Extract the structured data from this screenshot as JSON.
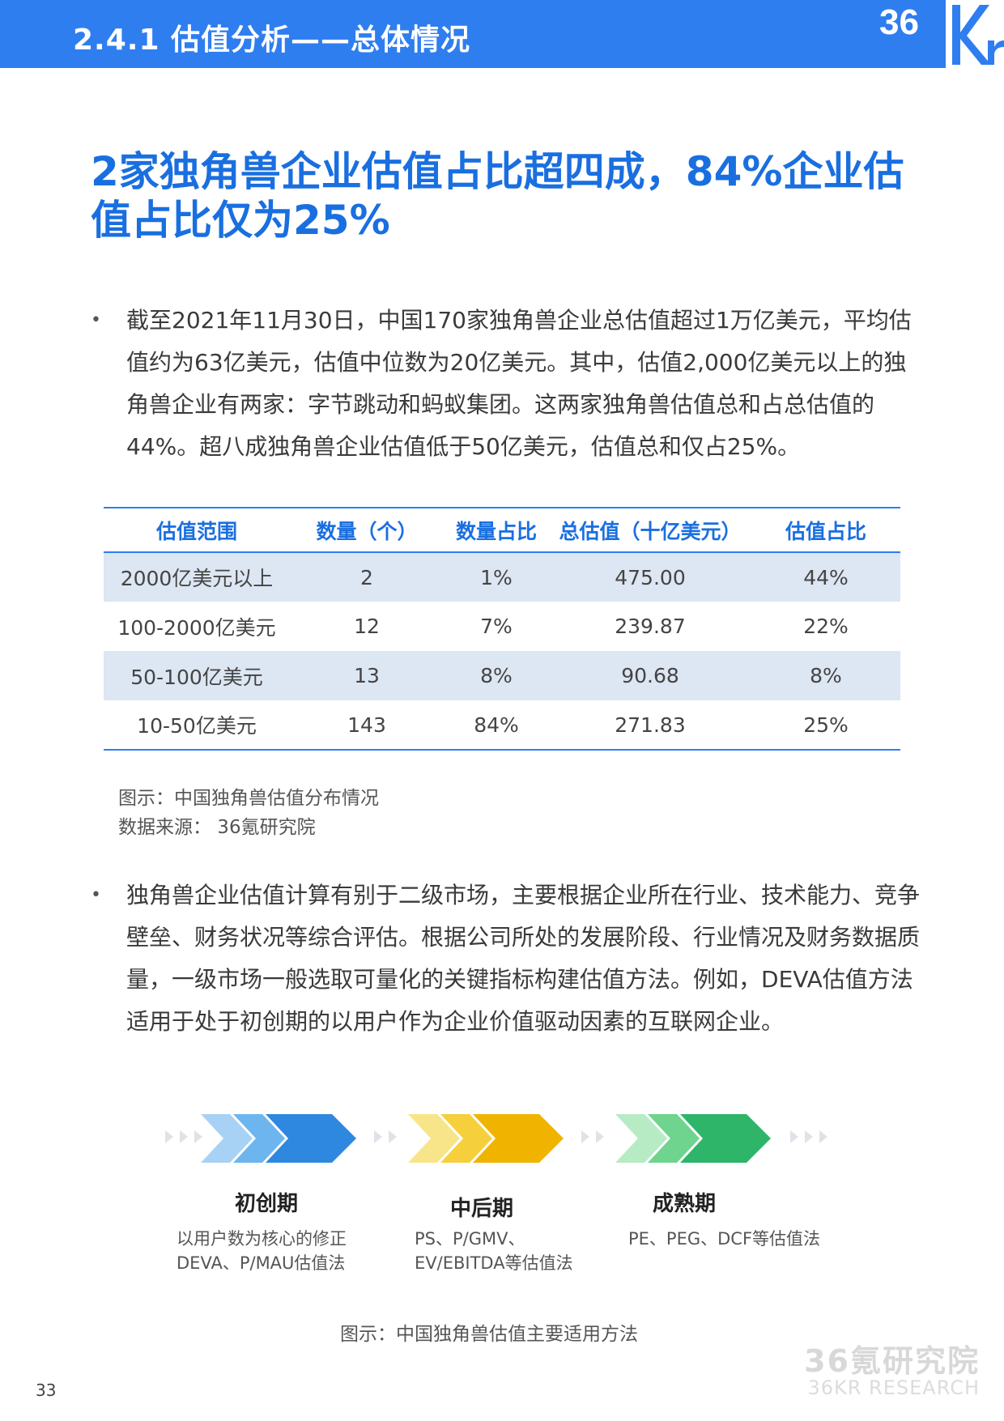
{
  "header": {
    "section_title": "2.4.1 估值分析——总体情况",
    "logo_text": "36Kr",
    "accent_color": "#2f7ef0"
  },
  "headline": "2家独角兽企业估值占比超四成，84%企业估值占比仅为25%",
  "paragraph1": "截至2021年11月30日，中国170家独角兽企业总估值超过1万亿美元，平均估值约为63亿美元，估值中位数为20亿美元。其中，估值2,000亿美元以上的独角兽企业有两家：字节跳动和蚂蚁集团。这两家独角兽估值总和占总估值的44%。超八成独角兽企业估值低于50亿美元，估值总和仅占25%。",
  "bullet_char": "•",
  "table": {
    "headers": [
      "估值范围",
      "数量（个）",
      "数量占比",
      "总估值（十亿美元）",
      "估值占比"
    ],
    "rows": [
      [
        "2000亿美元以上",
        "2",
        "1%",
        "475.00",
        "44%"
      ],
      [
        "100-2000亿美元",
        "12",
        "7%",
        "239.87",
        "22%"
      ],
      [
        "50-100亿美元",
        "13",
        "8%",
        "90.68",
        "8%"
      ],
      [
        "10-50亿美元",
        "143",
        "84%",
        "271.83",
        "25%"
      ]
    ]
  },
  "caption1": "图示：中国独角兽估值分布情况",
  "source": "数据来源：  36氪研究院",
  "paragraph2": "独角兽企业估值计算有别于二级市场，主要根据企业所在行业、技术能力、竞争壁垒、财务状况等综合评估。根据公司所处的发展阶段、行业情况及财务数据质量，一级市场一般选取可量化的关键指标构建估值方法。例如，DEVA估值方法适用于处于初创期的以用户作为企业价值驱动因素的互联网企业。",
  "stages": [
    {
      "label": "初创期",
      "desc_line1": "以用户数为核心的修正",
      "desc_line2": "DEVA、P/MAU估值法",
      "color": "#2f88e0"
    },
    {
      "label": "中后期",
      "desc_line1": "PS、P/GMV、",
      "desc_line2": "EV/EBITDA等估值法",
      "color": "#f0b400"
    },
    {
      "label": "成熟期",
      "desc_line1": "PE、PEG、DCF等估值法",
      "desc_line2": "",
      "color": "#2eb56a"
    }
  ],
  "caption2": "图示：中国独角兽估值主要适用方法",
  "page_number": "33",
  "watermark_cn": "36氪研究院",
  "watermark_en": "36KR RESEARCH"
}
